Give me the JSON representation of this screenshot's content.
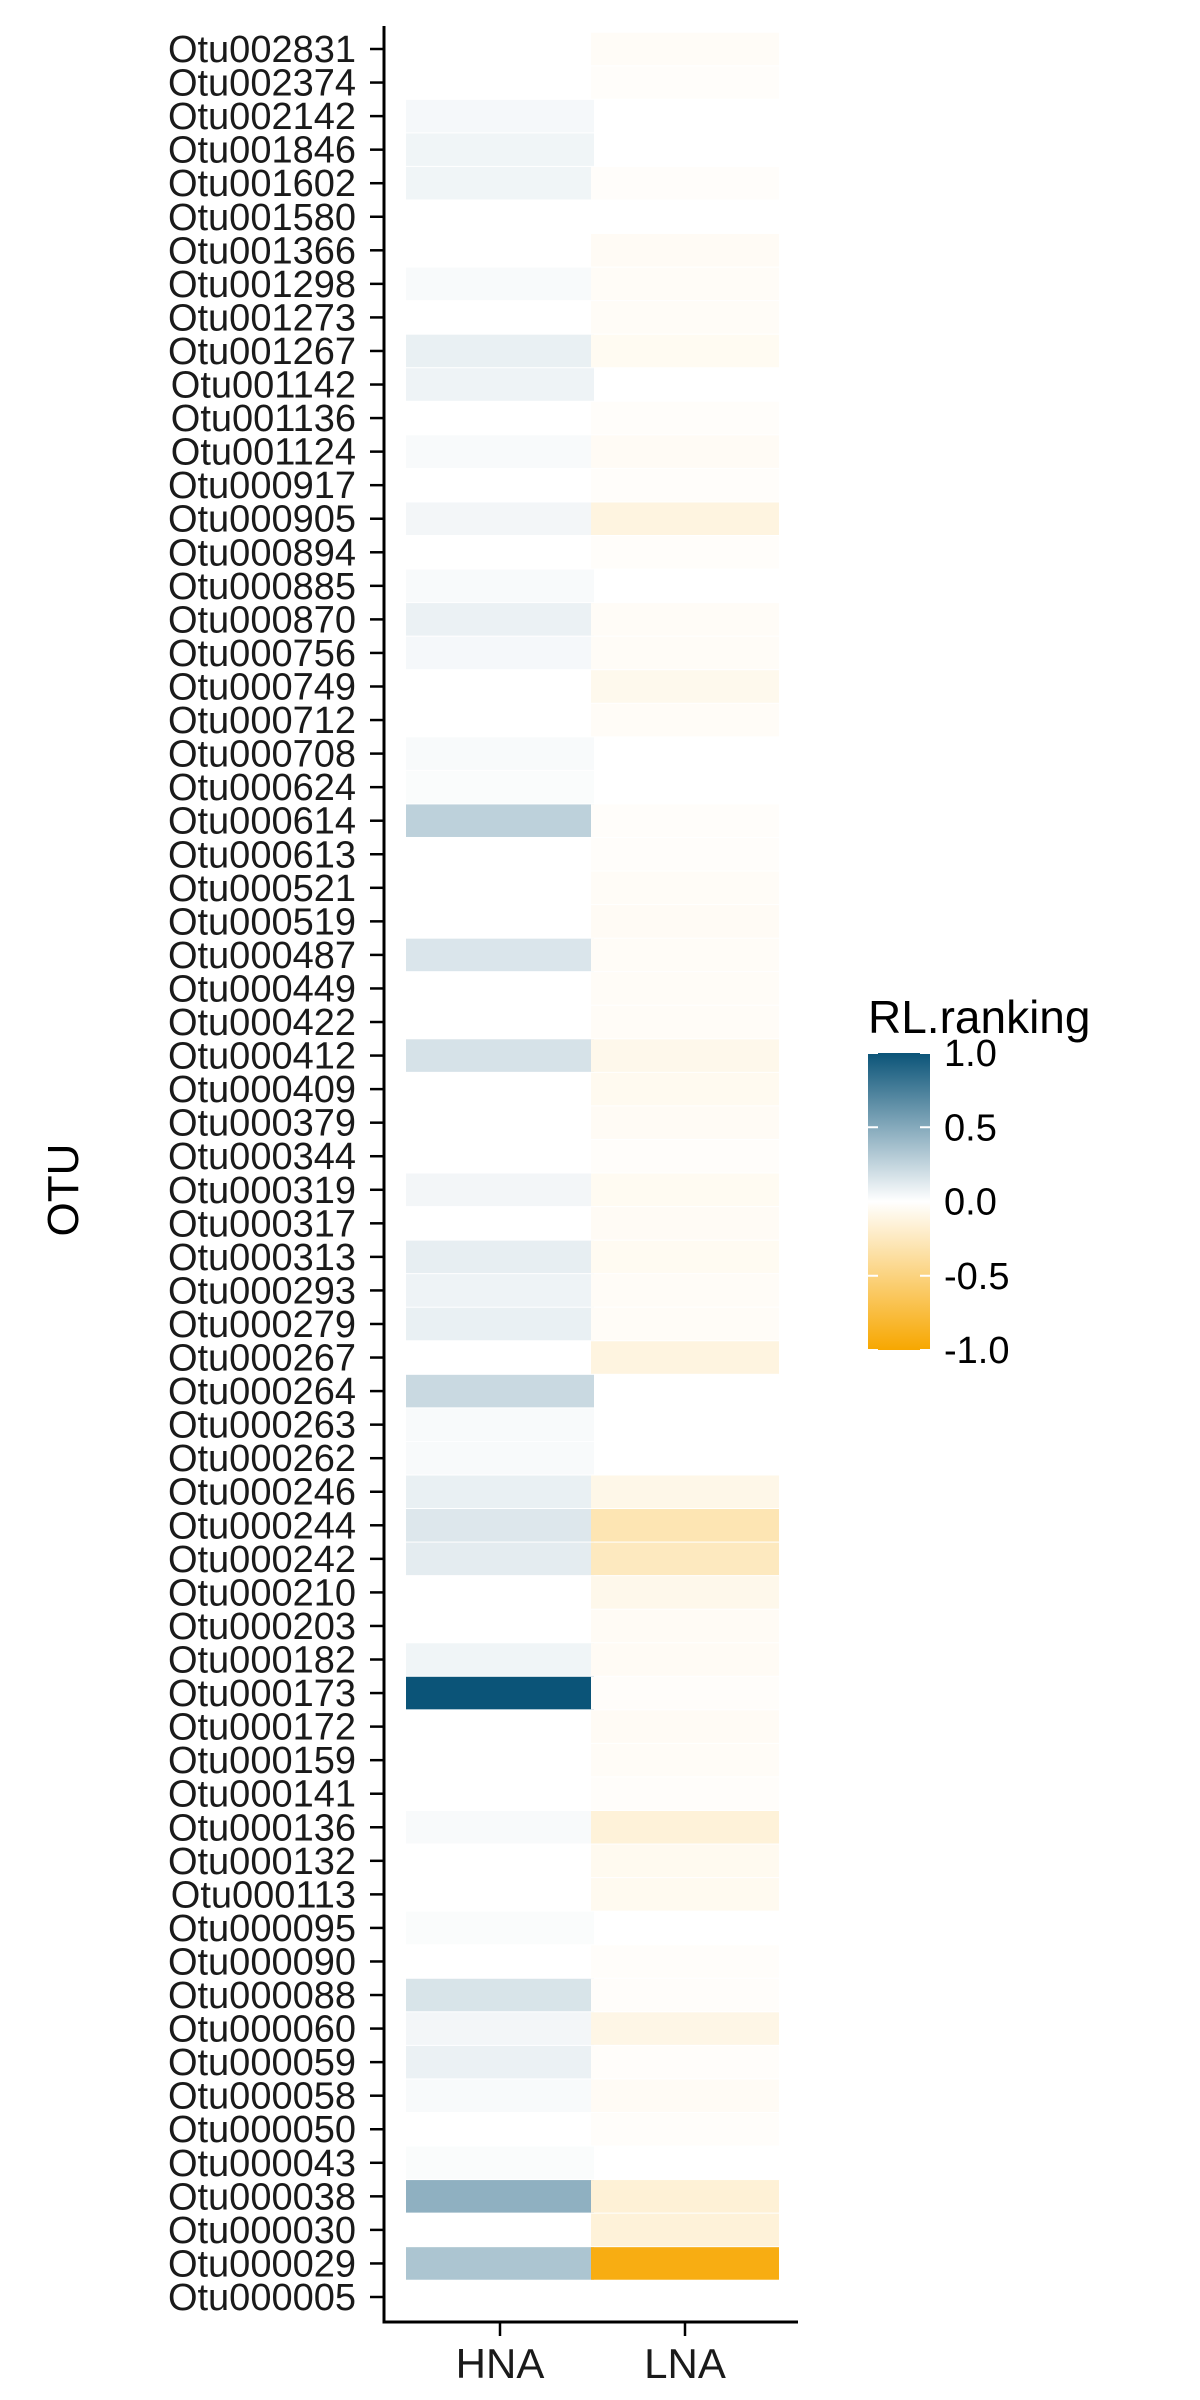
{
  "chart_data": {
    "type": "heatmap",
    "xlabel": "",
    "ylabel": "OTU",
    "categories": [
      "HNA",
      "LNA"
    ],
    "y_categories": [
      "Otu002831",
      "Otu002374",
      "Otu002142",
      "Otu001846",
      "Otu001602",
      "Otu001580",
      "Otu001366",
      "Otu001298",
      "Otu001273",
      "Otu001267",
      "Otu001142",
      "Otu001136",
      "Otu001124",
      "Otu000917",
      "Otu000905",
      "Otu000894",
      "Otu000885",
      "Otu000870",
      "Otu000756",
      "Otu000749",
      "Otu000712",
      "Otu000708",
      "Otu000624",
      "Otu000614",
      "Otu000613",
      "Otu000521",
      "Otu000519",
      "Otu000487",
      "Otu000449",
      "Otu000422",
      "Otu000412",
      "Otu000409",
      "Otu000379",
      "Otu000344",
      "Otu000319",
      "Otu000317",
      "Otu000313",
      "Otu000293",
      "Otu000279",
      "Otu000267",
      "Otu000264",
      "Otu000263",
      "Otu000262",
      "Otu000246",
      "Otu000244",
      "Otu000242",
      "Otu000210",
      "Otu000203",
      "Otu000182",
      "Otu000173",
      "Otu000172",
      "Otu000159",
      "Otu000141",
      "Otu000136",
      "Otu000132",
      "Otu000113",
      "Otu000095",
      "Otu000090",
      "Otu000088",
      "Otu000060",
      "Otu000059",
      "Otu000058",
      "Otu000050",
      "Otu000043",
      "Otu000038",
      "Otu000030",
      "Otu000029",
      "Otu000005"
    ],
    "values": [
      [
        null,
        -0.03
      ],
      [
        null,
        -0.02
      ],
      [
        0.04,
        null
      ],
      [
        0.06,
        null
      ],
      [
        0.06,
        -0.02
      ],
      [
        null,
        null
      ],
      [
        null,
        -0.04
      ],
      [
        0.03,
        -0.03
      ],
      [
        null,
        -0.03
      ],
      [
        0.09,
        -0.05
      ],
      [
        0.07,
        null
      ],
      [
        null,
        -0.02
      ],
      [
        0.03,
        -0.04
      ],
      [
        null,
        -0.02
      ],
      [
        0.05,
        -0.12
      ],
      [
        null,
        -0.02
      ],
      [
        0.03,
        null
      ],
      [
        0.08,
        -0.03
      ],
      [
        0.04,
        -0.03
      ],
      [
        null,
        -0.07
      ],
      [
        null,
        -0.03
      ],
      [
        0.03,
        null
      ],
      [
        0.02,
        null
      ],
      [
        0.27,
        -0.02
      ],
      [
        null,
        -0.02
      ],
      [
        null,
        -0.03
      ],
      [
        null,
        -0.04
      ],
      [
        0.15,
        -0.03
      ],
      [
        null,
        -0.03
      ],
      [
        null,
        -0.03
      ],
      [
        0.17,
        -0.08
      ],
      [
        null,
        -0.06
      ],
      [
        null,
        -0.04
      ],
      [
        null,
        -0.02
      ],
      [
        0.05,
        -0.05
      ],
      [
        null,
        -0.04
      ],
      [
        0.1,
        -0.05
      ],
      [
        0.07,
        -0.03
      ],
      [
        0.09,
        -0.03
      ],
      [
        null,
        -0.12
      ],
      [
        0.22,
        null
      ],
      [
        0.03,
        null
      ],
      [
        0.03,
        null
      ],
      [
        0.09,
        -0.09
      ],
      [
        0.14,
        -0.3
      ],
      [
        0.11,
        -0.25
      ],
      [
        null,
        -0.08
      ],
      [
        null,
        -0.04
      ],
      [
        0.06,
        -0.04
      ],
      [
        1.0,
        -0.02
      ],
      [
        null,
        -0.04
      ],
      [
        null,
        -0.03
      ],
      [
        null,
        -0.02
      ],
      [
        0.03,
        -0.15
      ],
      [
        null,
        -0.06
      ],
      [
        null,
        -0.06
      ],
      [
        0.02,
        null
      ],
      [
        null,
        -0.02
      ],
      [
        0.16,
        -0.02
      ],
      [
        0.05,
        -0.1
      ],
      [
        0.08,
        -0.02
      ],
      [
        0.03,
        -0.04
      ],
      [
        null,
        -0.02
      ],
      [
        0.02,
        null
      ],
      [
        0.46,
        -0.16
      ],
      [
        null,
        -0.15
      ],
      [
        0.34,
        -0.93
      ],
      [
        null,
        null
      ]
    ],
    "legend": {
      "title": "RL.ranking",
      "ticks": [
        1.0,
        0.5,
        0.0,
        -0.5,
        -1.0
      ],
      "tick_labels": [
        "1.0",
        "0.5",
        "0.0",
        "-0.5",
        "-1.0"
      ],
      "range": [
        -1,
        1
      ],
      "placement": "right"
    },
    "colors": {
      "high": "#0b5478",
      "mid": "#ffffff",
      "low": "#f7a700"
    },
    "grid": false
  }
}
